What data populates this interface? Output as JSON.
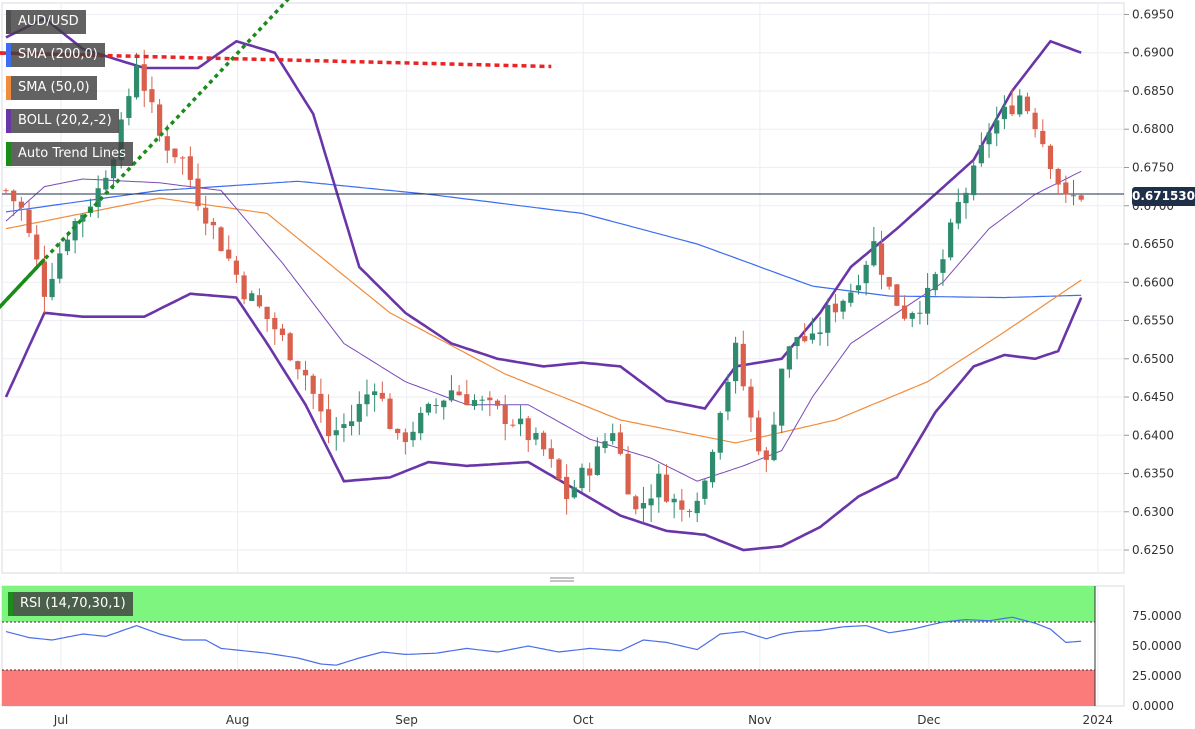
{
  "chart_data": {
    "type": "candlestick",
    "symbol": "AUD/USD",
    "current_price": "0.671530",
    "current_price_value": 0.67153,
    "price_axis": {
      "ylim": [
        0.622,
        0.6965
      ],
      "ticks": [
        "0.6950",
        "0.6900",
        "0.6850",
        "0.6800",
        "0.6750",
        "0.6700",
        "0.6650",
        "0.6600",
        "0.6550",
        "0.6500",
        "0.6450",
        "0.6400",
        "0.6350",
        "0.6300",
        "0.6250"
      ]
    },
    "rsi_axis": {
      "ylim": [
        0,
        100
      ],
      "ticks": [
        "75.0000",
        "50.0000",
        "25.0000",
        "0.0000"
      ],
      "overbought": 70,
      "oversold": 30
    },
    "x_labels": [
      "Jul",
      "Aug",
      "Sep",
      "Oct",
      "Nov",
      "Dec",
      "2024"
    ],
    "x_label_day_index": [
      0,
      23,
      45,
      68,
      91,
      113,
      135
    ],
    "bar_count": 141,
    "legend": [
      "AUD/USD",
      "SMA (200,0)",
      "SMA (50,0)",
      "BOLL (20,2,-2)",
      "Auto Trend Lines"
    ],
    "rsi_legend": "RSI (14,70,30,1)",
    "colors": {
      "up": "#2e8b6e",
      "down": "#d9604c",
      "sma200": "#3b6ef0",
      "sma50": "#f08c3c",
      "boll": "#6a35a8",
      "trend_support": "#1a8c1a",
      "trend_resistance": "#e82424",
      "rsi_line": "#4b6fe8",
      "rsi_overbought_zone": "#7ef57e",
      "rsi_oversold_zone": "#fb7b7b",
      "price_tag": "#1f2f4a"
    },
    "anchors": [
      [
        0,
        0.672
      ],
      [
        2,
        0.6695
      ],
      [
        5,
        0.659
      ],
      [
        8,
        0.6665
      ],
      [
        12,
        0.672
      ],
      [
        15,
        0.68
      ],
      [
        17,
        0.689
      ],
      [
        20,
        0.679
      ],
      [
        23,
        0.676
      ],
      [
        25,
        0.671
      ],
      [
        28,
        0.665
      ],
      [
        31,
        0.659
      ],
      [
        35,
        0.654
      ],
      [
        39,
        0.648
      ],
      [
        42,
        0.64
      ],
      [
        45,
        0.642
      ],
      [
        48,
        0.647
      ],
      [
        51,
        0.639
      ],
      [
        54,
        0.642
      ],
      [
        58,
        0.646
      ],
      [
        62,
        0.644
      ],
      [
        66,
        0.642
      ],
      [
        70,
        0.638
      ],
      [
        73,
        0.632
      ],
      [
        76,
        0.636
      ],
      [
        79,
        0.641
      ],
      [
        82,
        0.63
      ],
      [
        85,
        0.634
      ],
      [
        88,
        0.63
      ],
      [
        91,
        0.634
      ],
      [
        93,
        0.644
      ],
      [
        95,
        0.651
      ],
      [
        97,
        0.642
      ],
      [
        99,
        0.636
      ],
      [
        101,
        0.649
      ],
      [
        103,
        0.653
      ],
      [
        105,
        0.652
      ],
      [
        107,
        0.656
      ],
      [
        110,
        0.659
      ],
      [
        113,
        0.665
      ],
      [
        115,
        0.659
      ],
      [
        117,
        0.656
      ],
      [
        120,
        0.658
      ],
      [
        122,
        0.663
      ],
      [
        124,
        0.67
      ],
      [
        126,
        0.674
      ],
      [
        128,
        0.68
      ],
      [
        130,
        0.682
      ],
      [
        132,
        0.6845
      ],
      [
        134,
        0.681
      ],
      [
        136,
        0.676
      ],
      [
        138,
        0.6705
      ],
      [
        140,
        0.6715
      ]
    ],
    "sma200": [
      [
        0,
        0.6692
      ],
      [
        20,
        0.672
      ],
      [
        38,
        0.6732
      ],
      [
        55,
        0.6715
      ],
      [
        75,
        0.669
      ],
      [
        90,
        0.665
      ],
      [
        105,
        0.6595
      ],
      [
        115,
        0.6582
      ],
      [
        130,
        0.658
      ],
      [
        140,
        0.6583
      ]
    ],
    "sma50": [
      [
        0,
        0.667
      ],
      [
        20,
        0.671
      ],
      [
        34,
        0.669
      ],
      [
        50,
        0.656
      ],
      [
        65,
        0.648
      ],
      [
        80,
        0.642
      ],
      [
        95,
        0.639
      ],
      [
        108,
        0.642
      ],
      [
        120,
        0.647
      ],
      [
        130,
        0.6535
      ],
      [
        140,
        0.6603
      ]
    ],
    "boll_mid": [
      [
        0,
        0.668
      ],
      [
        5,
        0.6725
      ],
      [
        10,
        0.6735
      ],
      [
        20,
        0.673
      ],
      [
        28,
        0.672
      ],
      [
        36,
        0.6625
      ],
      [
        44,
        0.652
      ],
      [
        52,
        0.647
      ],
      [
        60,
        0.644
      ],
      [
        68,
        0.644
      ],
      [
        76,
        0.6395
      ],
      [
        84,
        0.637
      ],
      [
        90,
        0.634
      ],
      [
        96,
        0.636
      ],
      [
        101,
        0.638
      ],
      [
        105,
        0.645
      ],
      [
        110,
        0.652
      ],
      [
        116,
        0.656
      ],
      [
        122,
        0.66
      ],
      [
        128,
        0.667
      ],
      [
        134,
        0.6715
      ],
      [
        140,
        0.6745
      ]
    ],
    "boll_upper": [
      [
        0,
        0.692
      ],
      [
        5,
        0.6945
      ],
      [
        10,
        0.6905
      ],
      [
        18,
        0.688
      ],
      [
        25,
        0.688
      ],
      [
        30,
        0.6915
      ],
      [
        35,
        0.69
      ],
      [
        40,
        0.682
      ],
      [
        46,
        0.662
      ],
      [
        52,
        0.656
      ],
      [
        58,
        0.652
      ],
      [
        64,
        0.65
      ],
      [
        70,
        0.649
      ],
      [
        75,
        0.6495
      ],
      [
        80,
        0.649
      ],
      [
        86,
        0.6445
      ],
      [
        91,
        0.6435
      ],
      [
        95,
        0.649
      ],
      [
        101,
        0.65
      ],
      [
        106,
        0.656
      ],
      [
        110,
        0.662
      ],
      [
        116,
        0.667
      ],
      [
        121,
        0.6715
      ],
      [
        126,
        0.676
      ],
      [
        131,
        0.685
      ],
      [
        136,
        0.6915
      ],
      [
        140,
        0.69
      ]
    ],
    "boll_lower": [
      [
        0,
        0.645
      ],
      [
        5,
        0.656
      ],
      [
        10,
        0.6555
      ],
      [
        18,
        0.6555
      ],
      [
        24,
        0.6585
      ],
      [
        30,
        0.658
      ],
      [
        34,
        0.652
      ],
      [
        39,
        0.644
      ],
      [
        44,
        0.634
      ],
      [
        50,
        0.6345
      ],
      [
        55,
        0.6365
      ],
      [
        60,
        0.636
      ],
      [
        68,
        0.6365
      ],
      [
        74,
        0.633
      ],
      [
        80,
        0.6295
      ],
      [
        86,
        0.6275
      ],
      [
        91,
        0.627
      ],
      [
        96,
        0.625
      ],
      [
        101,
        0.6255
      ],
      [
        106,
        0.628
      ],
      [
        111,
        0.632
      ],
      [
        116,
        0.6345
      ],
      [
        121,
        0.643
      ],
      [
        126,
        0.649
      ],
      [
        130,
        0.6505
      ],
      [
        134,
        0.65
      ],
      [
        137,
        0.651
      ],
      [
        140,
        0.658
      ]
    ],
    "rsi": [
      [
        0,
        62
      ],
      [
        3,
        57
      ],
      [
        6,
        55
      ],
      [
        10,
        60
      ],
      [
        13,
        58
      ],
      [
        17,
        67
      ],
      [
        20,
        60
      ],
      [
        23,
        55
      ],
      [
        26,
        55
      ],
      [
        28,
        48
      ],
      [
        31,
        46
      ],
      [
        34,
        44
      ],
      [
        38,
        40
      ],
      [
        41,
        35
      ],
      [
        43,
        34
      ],
      [
        46,
        40
      ],
      [
        49,
        45
      ],
      [
        52,
        43
      ],
      [
        56,
        44
      ],
      [
        60,
        48
      ],
      [
        64,
        45
      ],
      [
        68,
        50
      ],
      [
        72,
        45
      ],
      [
        76,
        48
      ],
      [
        80,
        46
      ],
      [
        83,
        55
      ],
      [
        86,
        53
      ],
      [
        90,
        47
      ],
      [
        93,
        60
      ],
      [
        96,
        62
      ],
      [
        99,
        56
      ],
      [
        101,
        60
      ],
      [
        103,
        62
      ],
      [
        106,
        63
      ],
      [
        109,
        66
      ],
      [
        112,
        67
      ],
      [
        115,
        61
      ],
      [
        118,
        64
      ],
      [
        122,
        70
      ],
      [
        125,
        72
      ],
      [
        128,
        71
      ],
      [
        131,
        74
      ],
      [
        134,
        69
      ],
      [
        136,
        64
      ],
      [
        138,
        53
      ],
      [
        140,
        54
      ]
    ],
    "trend_support": [
      [
        -2,
        0.6555
      ],
      [
        47,
        0.708
      ]
    ],
    "trend_resistance": [
      [
        -2,
        0.69
      ],
      [
        71,
        0.6882
      ]
    ],
    "trend_resistance_solid_until": 12
  }
}
